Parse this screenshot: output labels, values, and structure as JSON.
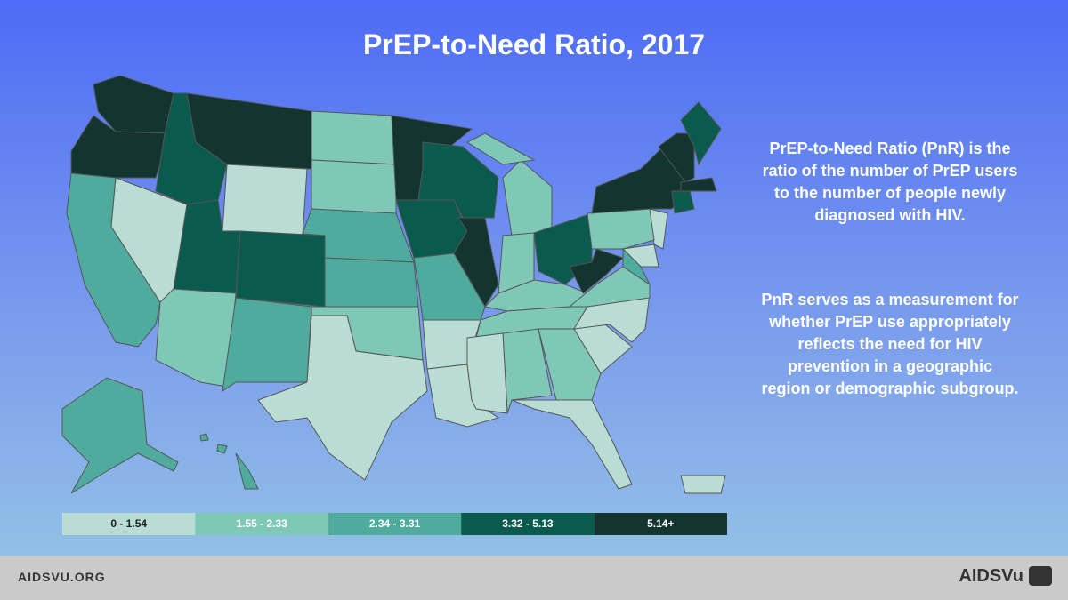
{
  "title": "PrEP-to-Need Ratio, 2017",
  "description": [
    "PrEP-to-Need Ratio (PnR) is the ratio of the number of PrEP users to the number of people newly diagnosed with HIV.",
    "PnR serves as a measurement for whether PrEP use appropriately reflects the need for HIV prevention in a geographic region or demographic subgroup."
  ],
  "map": {
    "legend": [
      {
        "label": "0 - 1.54",
        "color": "#b9ddd3"
      },
      {
        "label": "1.55 - 2.33",
        "color": "#7fc8b8"
      },
      {
        "label": "2.34 - 3.31",
        "color": "#4fab9d"
      },
      {
        "label": "3.32 - 5.13",
        "color": "#0b5a4e"
      },
      {
        "label": "5.14+",
        "color": "#123530"
      }
    ],
    "region_classes": [
      4,
      4,
      2,
      0,
      3,
      4,
      0,
      3,
      1,
      3,
      2,
      1,
      1,
      2,
      2,
      1,
      0,
      4,
      3,
      2,
      0,
      0,
      3,
      4,
      1,
      1,
      1,
      3,
      1,
      1,
      0,
      1,
      0,
      0,
      0,
      0,
      1,
      4,
      1,
      4,
      0,
      2,
      4,
      3,
      4,
      3,
      2,
      2,
      0
    ]
  },
  "footer": {
    "site": "AIDSVU.ORG",
    "logo": "AIDSVu"
  }
}
